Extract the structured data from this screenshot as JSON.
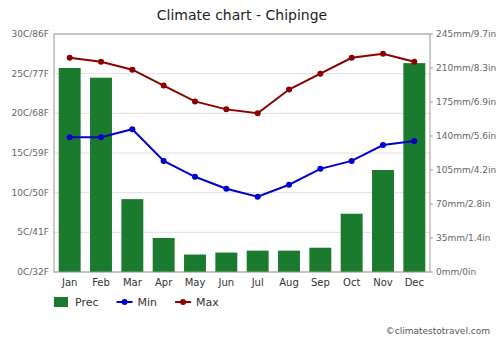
{
  "chart_data": {
    "type": "bar",
    "title": "Climate chart - Chipinge",
    "categories": [
      "Jan",
      "Feb",
      "Mar",
      "Apr",
      "May",
      "Jun",
      "Jul",
      "Aug",
      "Sep",
      "Oct",
      "Nov",
      "Dec"
    ],
    "series": [
      {
        "name": "Prec",
        "type": "bar",
        "axis": "y2",
        "color": "#1a7a2e",
        "values": [
          210,
          200,
          75,
          35,
          18,
          20,
          22,
          22,
          25,
          60,
          105,
          215
        ]
      },
      {
        "name": "Min",
        "type": "line",
        "color": "#0000cc",
        "marker": "circle",
        "values": [
          17,
          17,
          18,
          14,
          12,
          10.5,
          9.5,
          11,
          13,
          14,
          16,
          16.5
        ]
      },
      {
        "name": "Max",
        "type": "line",
        "color": "#8b0000",
        "marker": "circle",
        "values": [
          27,
          26.5,
          25.5,
          23.5,
          21.5,
          20.5,
          20,
          23,
          25,
          27,
          27.5,
          26.5
        ]
      }
    ],
    "ylim": [
      0,
      30
    ],
    "yticks": [
      {
        "value": 0,
        "label": "0C/32F"
      },
      {
        "value": 5,
        "label": "5C/41F"
      },
      {
        "value": 10,
        "label": "10C/50F"
      },
      {
        "value": 15,
        "label": "15C/59F"
      },
      {
        "value": 20,
        "label": "20C/68F"
      },
      {
        "value": 25,
        "label": "25C/77F"
      },
      {
        "value": 30,
        "label": "30C/86F"
      }
    ],
    "y2lim": [
      0,
      245
    ],
    "y2ticks": [
      {
        "value": 0,
        "label": "0mm/0in"
      },
      {
        "value": 35,
        "label": "35mm/1.4in"
      },
      {
        "value": 70,
        "label": "70mm/2.8in"
      },
      {
        "value": 105,
        "label": "105mm/4.2in"
      },
      {
        "value": 140,
        "label": "140mm/5.6in"
      },
      {
        "value": 175,
        "label": "175mm/6.9in"
      },
      {
        "value": 210,
        "label": "210mm/8.3in"
      },
      {
        "value": 245,
        "label": "245mm/9.7in"
      }
    ],
    "grid": true,
    "legend": "bottom",
    "annotations": [
      "©climatestotravel.com"
    ]
  }
}
